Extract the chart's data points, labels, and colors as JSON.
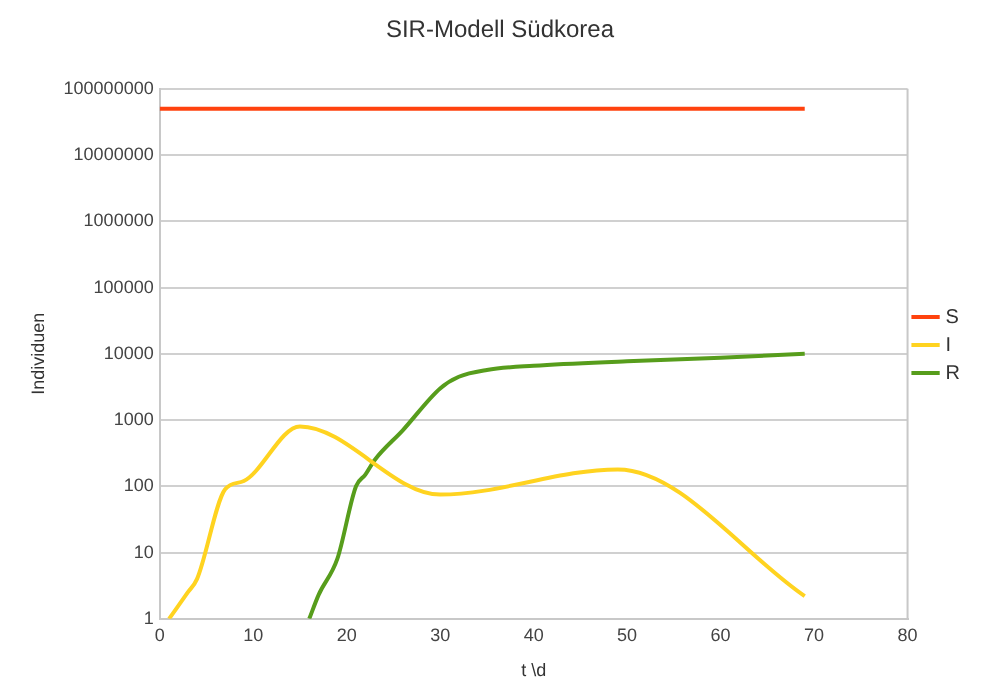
{
  "chart_data": {
    "type": "line",
    "title": "SIR-Modell Südkorea",
    "xlabel": "t \\d",
    "ylabel": "Individuen",
    "xlim": [
      0,
      80
    ],
    "xticks": [
      0,
      10,
      20,
      30,
      40,
      50,
      60,
      70,
      80
    ],
    "ylim": [
      1,
      100000000
    ],
    "yticks": [
      1,
      10,
      100,
      1000,
      10000,
      100000,
      1000000,
      10000000,
      100000000
    ],
    "log": "y",
    "grid": "y",
    "legend": "right",
    "marker": "none",
    "line_style": "solid",
    "series": [
      {
        "name": "S",
        "color": "#ff420e",
        "x": [
          0,
          69
        ],
        "values": [
          50000000,
          50000000
        ]
      },
      {
        "name": "I",
        "color": "#ffd320",
        "x": [
          1,
          3,
          4,
          7,
          9,
          15,
          30,
          49,
          69
        ],
        "values": [
          1,
          2.5,
          4,
          90,
          120,
          800,
          75,
          180,
          2.2
        ]
      },
      {
        "name": "R",
        "color": "#579d1c",
        "x": [
          16,
          17,
          19,
          21,
          22,
          23,
          26,
          30,
          32,
          35,
          40,
          50,
          60,
          69
        ],
        "values": [
          1,
          2.3,
          8,
          100,
          150,
          250,
          700,
          3000,
          4500,
          5700,
          6600,
          7700,
          8700,
          10000
        ]
      }
    ]
  }
}
